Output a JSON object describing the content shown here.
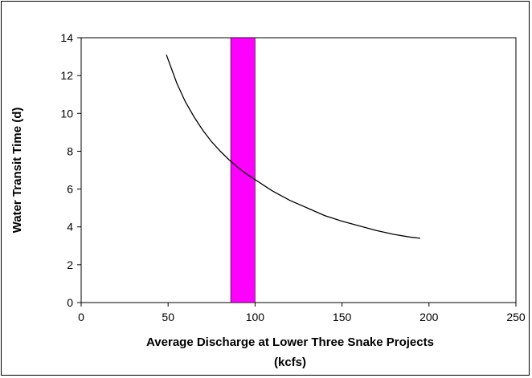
{
  "chart_data": {
    "type": "line",
    "title": "",
    "xlabel_lines": [
      "Average Discharge at Lower Three Snake Projects",
      "(kcfs)"
    ],
    "ylabel": "Water Transit Time (d)",
    "xlim": [
      0,
      250
    ],
    "ylim": [
      0,
      14
    ],
    "xticks": [
      0,
      50,
      100,
      150,
      200,
      250
    ],
    "yticks": [
      0,
      2,
      4,
      6,
      8,
      10,
      12,
      14
    ],
    "grid": false,
    "legend": "none",
    "series": [
      {
        "color": "#000000",
        "x": [
          49,
          55,
          60,
          65,
          70,
          75,
          80,
          85,
          90,
          95,
          100,
          110,
          120,
          130,
          140,
          150,
          160,
          170,
          180,
          190,
          195
        ],
        "y": [
          13.1,
          11.6,
          10.6,
          9.8,
          9.1,
          8.5,
          8.0,
          7.55,
          7.15,
          6.8,
          6.5,
          5.9,
          5.4,
          5.0,
          4.6,
          4.3,
          4.05,
          3.8,
          3.6,
          3.45,
          3.4
        ]
      }
    ],
    "highlight_band": {
      "x_start": 86,
      "x_end": 100,
      "color": "#ff00ff"
    }
  }
}
